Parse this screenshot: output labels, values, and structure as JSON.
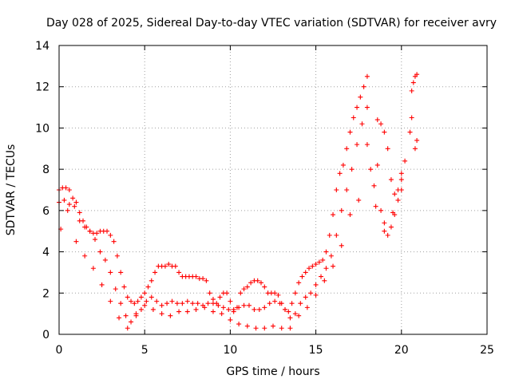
{
  "chart_data": {
    "type": "scatter",
    "title": "Day 028 of 2025, Sidereal Day-to-day VTEC variation (SDTVAR) for receiver avry",
    "xlabel": "GPS time / hours",
    "ylabel": "SDTVAR / TECUs",
    "xlim": [
      0,
      25
    ],
    "ylim": [
      0,
      14
    ],
    "xticks": [
      0,
      5,
      10,
      15,
      20,
      25
    ],
    "yticks": [
      0,
      2,
      4,
      6,
      8,
      10,
      12,
      14
    ],
    "grid": true,
    "marker": "+",
    "series": [
      {
        "name": "SDTVAR",
        "color": "#ff0000",
        "x": [
          0.0,
          0.2,
          0.4,
          0.6,
          0.8,
          1.0,
          1.2,
          1.4,
          1.6,
          1.8,
          2.0,
          2.2,
          2.4,
          2.6,
          2.8,
          3.0,
          3.2,
          3.4,
          3.6,
          3.8,
          4.0,
          4.2,
          4.4,
          4.6,
          4.8,
          5.0,
          5.2,
          5.4,
          5.6,
          5.8,
          6.0,
          6.2,
          6.4,
          6.6,
          6.8,
          7.0,
          7.2,
          7.4,
          7.6,
          7.8,
          8.0,
          8.2,
          8.4,
          8.6,
          8.8,
          9.0,
          9.2,
          9.4,
          9.6,
          9.8,
          10.0,
          10.2,
          10.4,
          10.6,
          10.8,
          11.0,
          11.2,
          11.4,
          11.6,
          11.8,
          12.0,
          12.2,
          12.4,
          12.6,
          12.8,
          13.0,
          13.2,
          13.4,
          13.6,
          13.8,
          14.0,
          14.2,
          14.4,
          14.6,
          14.8,
          15.0,
          15.2,
          15.4,
          15.6,
          15.8,
          16.0,
          16.2,
          16.4,
          16.6,
          16.8,
          17.0,
          17.2,
          17.4,
          17.6,
          17.8,
          18.0,
          18.2,
          18.4,
          18.6,
          18.8,
          19.0,
          19.2,
          19.4,
          19.6,
          19.8,
          20.0,
          20.2,
          20.6,
          20.7,
          20.8,
          20.9,
          0.0,
          0.3,
          0.6,
          0.9,
          1.2,
          1.5,
          1.8,
          2.1,
          2.4,
          2.7,
          3.0,
          3.3,
          3.6,
          3.9,
          4.2,
          4.5,
          4.8,
          5.1,
          5.4,
          5.7,
          6.0,
          6.3,
          6.6,
          6.9,
          7.2,
          7.5,
          7.8,
          8.1,
          8.4,
          8.7,
          9.0,
          9.3,
          9.6,
          9.9,
          10.2,
          10.5,
          10.8,
          11.1,
          11.4,
          11.7,
          12.0,
          12.3,
          12.6,
          12.9,
          13.2,
          13.5,
          13.8,
          14.1,
          14.4,
          14.7,
          15.0,
          15.3,
          15.6,
          15.9,
          16.2,
          16.5,
          16.8,
          17.1,
          17.4,
          17.7,
          18.0,
          18.6,
          18.8,
          19.0,
          19.2,
          19.4,
          19.6,
          19.8,
          20.0,
          20.6,
          20.8,
          0.1,
          0.5,
          1.0,
          1.5,
          2.0,
          2.5,
          3.0,
          3.5,
          4.0,
          4.5,
          5.0,
          5.5,
          6.0,
          6.5,
          7.0,
          7.5,
          8.0,
          8.5,
          9.0,
          9.5,
          10.0,
          10.5,
          11.0,
          11.5,
          12.0,
          12.5,
          13.0,
          13.5,
          14.0,
          14.5,
          15.0,
          15.5,
          16.0,
          16.5,
          17.0,
          17.5,
          18.0,
          18.5,
          19.0,
          19.5,
          20.0,
          20.5,
          20.9
        ],
        "y": [
          7.0,
          7.1,
          7.1,
          7.0,
          6.6,
          6.4,
          5.9,
          5.5,
          5.2,
          5.0,
          4.9,
          4.9,
          5.0,
          5.0,
          5.0,
          4.8,
          4.5,
          3.8,
          3.0,
          2.3,
          1.8,
          1.6,
          1.5,
          1.6,
          1.8,
          2.0,
          2.3,
          2.6,
          3.0,
          3.3,
          3.3,
          3.3,
          3.4,
          3.3,
          3.3,
          3.0,
          2.8,
          2.8,
          2.8,
          2.8,
          2.8,
          2.7,
          2.7,
          2.6,
          2.0,
          1.7,
          1.5,
          1.8,
          2.0,
          2.0,
          1.6,
          1.2,
          1.3,
          2.0,
          2.2,
          2.3,
          2.5,
          2.6,
          2.6,
          2.5,
          2.3,
          2.0,
          2.0,
          2.0,
          1.9,
          1.5,
          1.2,
          1.1,
          1.5,
          2.0,
          2.5,
          2.8,
          3.0,
          3.2,
          3.3,
          3.4,
          3.5,
          3.6,
          4.0,
          4.8,
          5.8,
          7.0,
          7.8,
          8.2,
          9.0,
          9.8,
          10.5,
          11.0,
          11.5,
          12.0,
          12.5,
          8.0,
          7.2,
          10.4,
          10.2,
          9.8,
          9.0,
          7.5,
          6.8,
          7.0,
          7.8,
          8.4,
          11.8,
          12.2,
          12.5,
          12.6,
          6.4,
          6.5,
          6.3,
          6.2,
          5.5,
          5.2,
          5.0,
          4.6,
          4.0,
          3.6,
          3.0,
          2.2,
          1.5,
          0.9,
          0.6,
          0.9,
          1.2,
          1.6,
          1.8,
          1.6,
          1.4,
          1.5,
          1.6,
          1.5,
          1.5,
          1.6,
          1.5,
          1.5,
          1.4,
          1.5,
          1.5,
          1.4,
          1.3,
          1.2,
          1.1,
          1.3,
          1.4,
          1.4,
          1.2,
          1.2,
          1.3,
          1.5,
          1.6,
          1.5,
          1.2,
          0.8,
          1.0,
          1.5,
          1.8,
          2.0,
          2.4,
          2.8,
          3.2,
          3.8,
          4.8,
          6.0,
          7.0,
          8.0,
          9.2,
          10.2,
          11.0,
          8.2,
          6.0,
          5.0,
          4.8,
          5.2,
          5.8,
          6.5,
          7.0,
          10.5,
          9.0,
          5.1,
          6.0,
          4.5,
          3.8,
          3.2,
          2.4,
          1.6,
          0.8,
          0.3,
          1.0,
          1.4,
          1.2,
          1.0,
          0.9,
          1.1,
          1.1,
          1.2,
          1.3,
          1.1,
          1.0,
          0.7,
          0.5,
          0.4,
          0.3,
          0.3,
          0.4,
          0.3,
          0.3,
          0.9,
          1.3,
          1.9,
          2.6,
          3.3,
          4.3,
          5.8,
          6.5,
          9.2,
          6.2,
          5.4,
          5.9,
          7.5,
          9.8,
          9.4
        ]
      }
    ]
  }
}
